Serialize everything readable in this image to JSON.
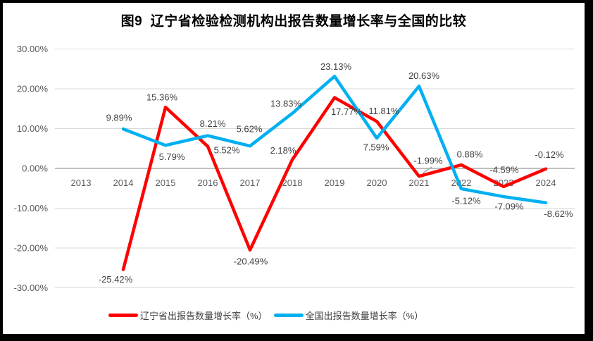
{
  "window": {
    "border_color": "#000000",
    "background_color": "#ffffff"
  },
  "chart_data": {
    "type": "line",
    "title": "图9  辽宁省检验检测机构出报告数量增长率与全国的比较",
    "categories": [
      "2013",
      "2014",
      "2015",
      "2016",
      "2017",
      "2018",
      "2019",
      "2020",
      "2021",
      "2022",
      "2023",
      "2024"
    ],
    "y_axis": {
      "ylim": [
        -30,
        30
      ],
      "grid": true,
      "zero_line_color": "#BFBFBF",
      "gridline_color": "#D9D9D9",
      "ticks": [
        {
          "value": 30,
          "label": "30.00%"
        },
        {
          "value": 20,
          "label": "20.00%"
        },
        {
          "value": 10,
          "label": "10.00%"
        },
        {
          "value": 0,
          "label": "0.00%"
        },
        {
          "value": -10,
          "label": "-10.00%"
        },
        {
          "value": -20,
          "label": "-20.00%"
        },
        {
          "value": -30,
          "label": "-30.00%"
        }
      ]
    },
    "legend_position": "bottom",
    "series": [
      {
        "key": "liaoning",
        "name": "辽宁省出报告数量增长率（%）",
        "color": "#FF0000",
        "start_year": "2014",
        "values": [
          -25.42,
          15.36,
          5.52,
          -20.49,
          2.18,
          17.77,
          11.81,
          -1.99,
          0.88,
          -4.59,
          -0.12
        ],
        "labels": [
          "-25.42%",
          "15.36%",
          "5.52%",
          "-20.49%",
          "2.18%",
          "17.77%",
          "11.81%",
          "-1.99%",
          "0.88%",
          "-4.59%",
          "-0.12%"
        ],
        "label_offsets": [
          [
            -11,
            14
          ],
          [
            -5,
            -14
          ],
          [
            27,
            5
          ],
          [
            1,
            16
          ],
          [
            -13,
            -13
          ],
          [
            17,
            20
          ],
          [
            10,
            -15
          ],
          [
            13,
            -22
          ],
          [
            12,
            -15
          ],
          [
            1,
            -24
          ],
          [
            5,
            -20
          ]
        ]
      },
      {
        "key": "national",
        "name": "全国出报告数量增长率（%）",
        "color": "#00B0F0",
        "start_year": "2014",
        "values": [
          9.89,
          5.79,
          8.21,
          5.62,
          13.83,
          23.13,
          7.59,
          20.63,
          -5.12,
          -7.09,
          -8.62
        ],
        "labels": [
          "9.89%",
          "5.79%",
          "8.21%",
          "5.62%",
          "13.83%",
          "23.13%",
          "7.59%",
          "20.63%",
          "-5.12%",
          "-7.09%",
          "-8.62%"
        ],
        "label_offsets": [
          [
            -6,
            -16
          ],
          [
            9,
            16
          ],
          [
            7,
            -17
          ],
          [
            -1,
            -24
          ],
          [
            -9,
            -14
          ],
          [
            2,
            -14
          ],
          [
            -1,
            13
          ],
          [
            7,
            -15
          ],
          [
            7,
            17
          ],
          [
            8,
            14
          ],
          [
            18,
            16
          ]
        ]
      }
    ],
    "annotations": [
      {
        "type": "leader-line",
        "for": "liaoning 2021 label",
        "color": "#A6A6A6"
      }
    ]
  }
}
